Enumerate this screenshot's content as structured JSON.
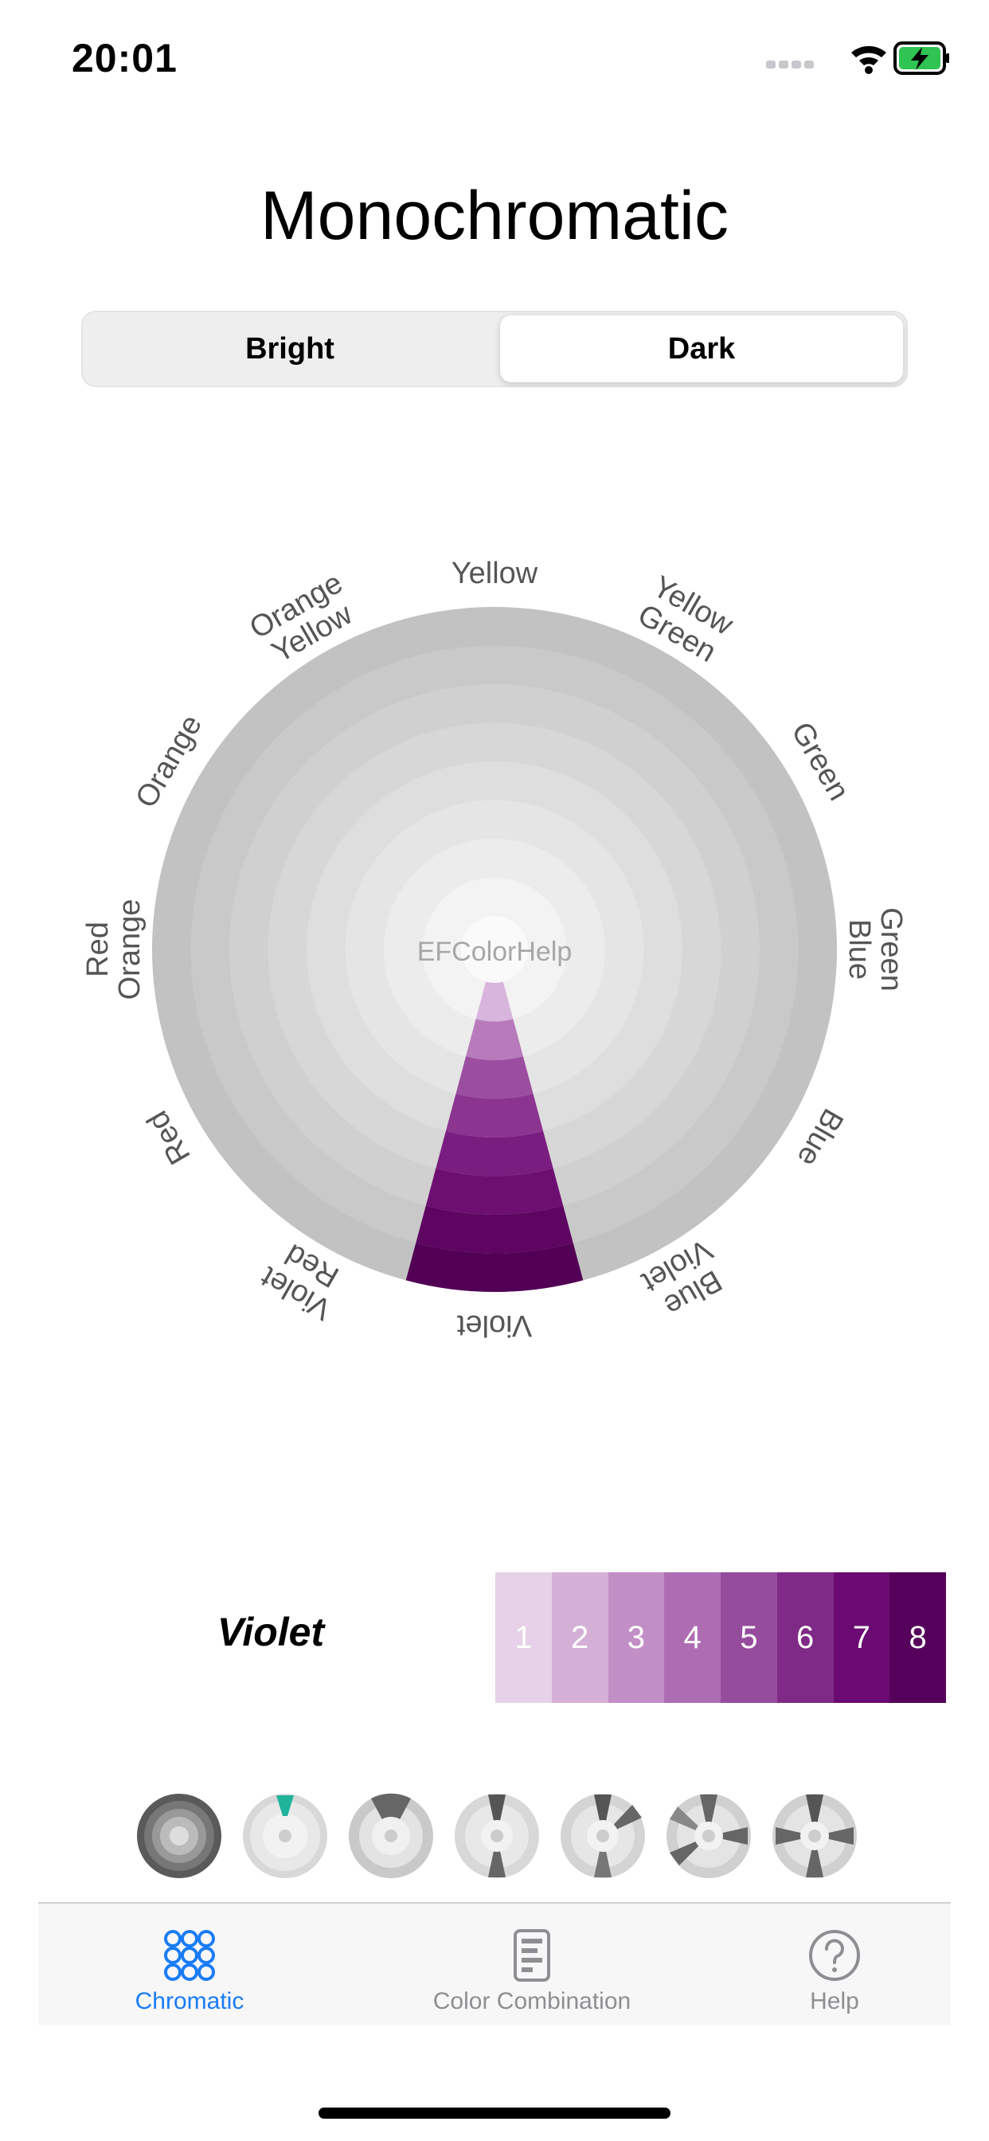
{
  "status_bar": {
    "time": "20:01",
    "icons": [
      "signal-icon",
      "wifi-icon",
      "battery-charging-icon"
    ]
  },
  "header": {
    "title": "Monochromatic"
  },
  "segmented": {
    "options": [
      "Bright",
      "Dark"
    ],
    "selected": "Dark"
  },
  "wheel": {
    "center_label": "EFColorHelp",
    "labels": [
      {
        "lines": [
          "Yellow"
        ]
      },
      {
        "lines": [
          "Yellow",
          "Green"
        ]
      },
      {
        "lines": [
          "Green"
        ]
      },
      {
        "lines": [
          "Green",
          "Blue"
        ]
      },
      {
        "lines": [
          "Blue"
        ]
      },
      {
        "lines": [
          "Blue",
          "Violet"
        ]
      },
      {
        "lines": [
          "Violet"
        ]
      },
      {
        "lines": [
          "Violet",
          "Red"
        ]
      },
      {
        "lines": [
          "Red"
        ]
      },
      {
        "lines": [
          "Red",
          "Orange"
        ]
      },
      {
        "lines": [
          "Orange"
        ]
      },
      {
        "lines": [
          "Orange",
          "Yellow"
        ]
      }
    ],
    "highlighted_segment": "Violet",
    "ring_colors": [
      "#d8b5dc",
      "#b77bbb",
      "#9b4e9f",
      "#8b3490",
      "#7a1d80",
      "#6d0f71",
      "#5e0562",
      "#520055"
    ]
  },
  "selection": {
    "color_name": "Violet",
    "swatches": [
      {
        "label": "1",
        "color": "#e6d1e8"
      },
      {
        "label": "2",
        "color": "#d4b0d7"
      },
      {
        "label": "3",
        "color": "#c18fc5"
      },
      {
        "label": "4",
        "color": "#ae6db3"
      },
      {
        "label": "5",
        "color": "#964c9d"
      },
      {
        "label": "6",
        "color": "#7f2a86"
      },
      {
        "label": "7",
        "color": "#6b0a72"
      },
      {
        "label": "8",
        "color": "#55005b"
      }
    ]
  },
  "tabbar": {
    "items": [
      {
        "label": "Chromatic",
        "icon": "flower-icon",
        "active": true
      },
      {
        "label": "Color Combination",
        "icon": "document-icon",
        "active": false
      },
      {
        "label": "Help",
        "icon": "question-circle-icon",
        "active": false
      }
    ]
  }
}
